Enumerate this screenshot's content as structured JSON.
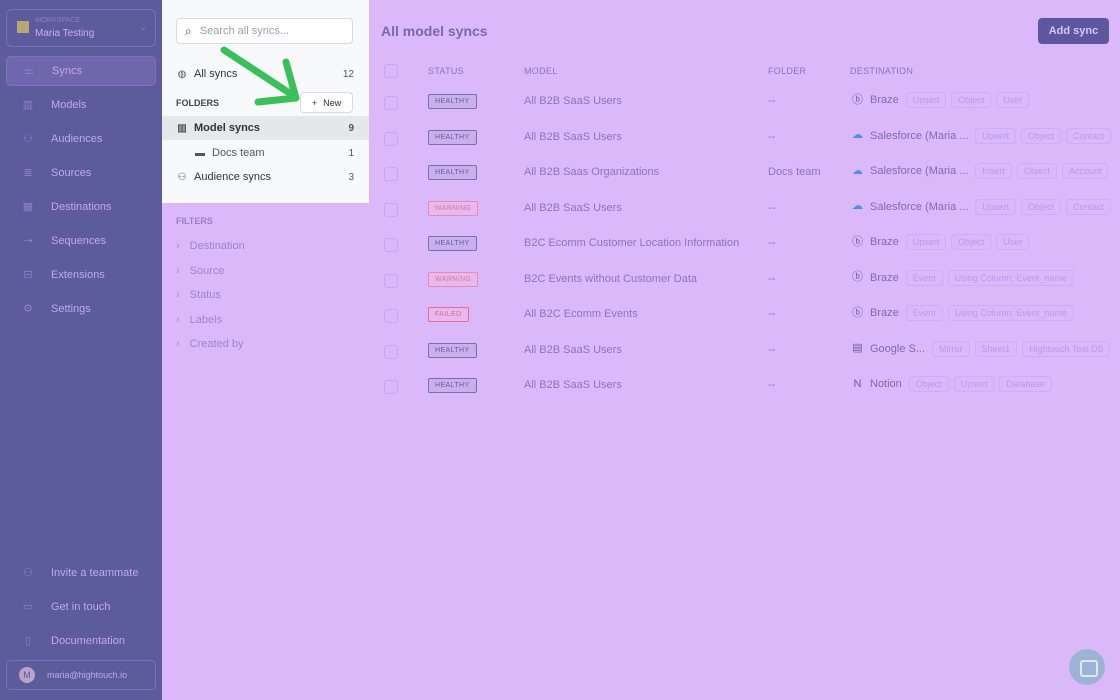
{
  "workspace": {
    "label": "WORKSPACE",
    "name": "Maria Testing"
  },
  "nav": [
    {
      "label": "Syncs",
      "icon": "syncs-icon",
      "active": true
    },
    {
      "label": "Models",
      "icon": "chart-icon"
    },
    {
      "label": "Audiences",
      "icon": "users-icon"
    },
    {
      "label": "Sources",
      "icon": "database-icon"
    },
    {
      "label": "Destinations",
      "icon": "grid-icon"
    },
    {
      "label": "Sequences",
      "icon": "arrow-icon"
    },
    {
      "label": "Extensions",
      "icon": "toolbox-icon"
    },
    {
      "label": "Settings",
      "icon": "gear-icon"
    }
  ],
  "bottom_nav": [
    {
      "label": "Invite a teammate",
      "icon": "user-plus-icon"
    },
    {
      "label": "Get in touch",
      "icon": "chat-icon"
    },
    {
      "label": "Documentation",
      "icon": "book-icon"
    }
  ],
  "user": {
    "initial": "M",
    "email": "maria@hightouch.io"
  },
  "panel": {
    "search_placeholder": "Search all syncs...",
    "all_syncs": {
      "label": "All syncs",
      "count": "12"
    },
    "folders_label": "FOLDERS",
    "new_label": "New",
    "folders": [
      {
        "label": "Model syncs",
        "count": "9"
      },
      {
        "label": "Docs team",
        "count": "1"
      },
      {
        "label": "Audience syncs",
        "count": "3"
      }
    ],
    "filters_label": "FILTERS",
    "filters": [
      "Destination",
      "Source",
      "Status",
      "Labels",
      "Created by"
    ]
  },
  "main": {
    "title": "All model syncs",
    "add_label": "Add sync",
    "headers": {
      "status": "STATUS",
      "model": "MODEL",
      "folder": "FOLDER",
      "destination": "DESTINATION"
    },
    "rows": [
      {
        "status": "HEALTHY",
        "model": "All B2B SaaS Users",
        "folder": "--",
        "dest": "Braze",
        "icon": "braze",
        "tags": [
          "Upsert",
          "Object",
          "User"
        ]
      },
      {
        "status": "HEALTHY",
        "model": "All B2B SaaS Users",
        "folder": "--",
        "dest": "Salesforce (Maria ...",
        "icon": "salesforce",
        "tags": [
          "Upsert",
          "Object",
          "Contact"
        ]
      },
      {
        "status": "HEALTHY",
        "model": "All B2B Saas Organizations",
        "folder": "Docs team",
        "dest": "Salesforce (Maria ...",
        "icon": "salesforce",
        "tags": [
          "Insert",
          "Object",
          "Account"
        ]
      },
      {
        "status": "WARNING",
        "model": "All B2B SaaS Users",
        "folder": "--",
        "dest": "Salesforce (Maria ...",
        "icon": "salesforce",
        "tags": [
          "Upsert",
          "Object",
          "Contact"
        ]
      },
      {
        "status": "HEALTHY",
        "model": "B2C Ecomm Customer Location Information",
        "folder": "--",
        "dest": "Braze",
        "icon": "braze",
        "tags": [
          "Upsert",
          "Object",
          "User"
        ]
      },
      {
        "status": "WARNING",
        "model": "B2C Events without Customer Data",
        "folder": "--",
        "dest": "Braze",
        "icon": "braze",
        "tags": [
          "Event",
          "Using Column: Event_name"
        ]
      },
      {
        "status": "FAILED",
        "model": "All B2C Ecomm Events",
        "folder": "--",
        "dest": "Braze",
        "icon": "braze",
        "tags": [
          "Event",
          "Using Column: Event_name"
        ]
      },
      {
        "status": "HEALTHY",
        "model": "All B2B SaaS Users",
        "folder": "--",
        "dest": "Google S...",
        "icon": "google-sheets",
        "tags": [
          "Mirror",
          "Sheet1",
          "Hightouch Test DB"
        ]
      },
      {
        "status": "HEALTHY",
        "model": "All B2B SaaS Users",
        "folder": "--",
        "dest": "Notion",
        "icon": "notion",
        "tags": [
          "Object",
          "Upsert",
          "Database"
        ]
      }
    ]
  },
  "colors": {
    "overlay": "#dbb8fa",
    "sidebar": "#5c5b9c",
    "accent": "#5e57a0",
    "arrow": "#3cbf5a"
  }
}
